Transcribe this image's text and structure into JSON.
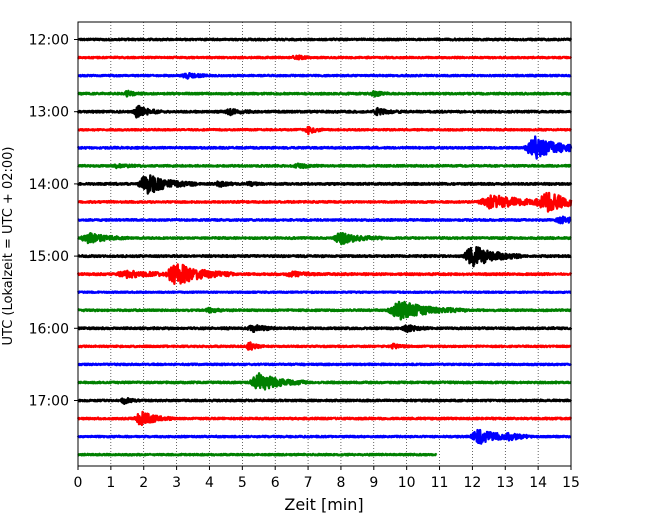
{
  "chart_data": {
    "type": "line",
    "title": "",
    "xlabel": "Zeit  [min]",
    "ylabel": "UTC (Lokalzeit = UTC + 02:00)",
    "xlim": [
      0,
      15
    ],
    "x_ticks": [
      0,
      1,
      2,
      3,
      4,
      5,
      6,
      7,
      8,
      9,
      10,
      11,
      12,
      13,
      14,
      15
    ],
    "y_tick_labels": [
      "12:00",
      "13:00",
      "14:00",
      "15:00",
      "16:00",
      "17:00"
    ],
    "y_tick_rows": [
      0,
      4,
      8,
      12,
      16,
      20
    ],
    "grid": "vertical dotted lines at each minute",
    "colors": [
      "#000000",
      "#ff0000",
      "#0000ff",
      "#008000"
    ],
    "traces": [
      {
        "start": "12:00",
        "end_min": 15,
        "noise": 0.9,
        "events": []
      },
      {
        "start": "12:15",
        "end_min": 15,
        "noise": 0.8,
        "events": [
          {
            "t": 6.6,
            "amp": 2.5,
            "dur": 0.2
          }
        ]
      },
      {
        "start": "12:30",
        "end_min": 15,
        "noise": 0.8,
        "events": [
          {
            "t": 3.3,
            "amp": 2.5,
            "dur": 0.3
          }
        ]
      },
      {
        "start": "12:45",
        "end_min": 15,
        "noise": 0.9,
        "events": [
          {
            "t": 1.5,
            "amp": 2.5,
            "dur": 0.2
          },
          {
            "t": 9.0,
            "amp": 2.5,
            "dur": 0.2
          }
        ]
      },
      {
        "start": "13:00",
        "end_min": 15,
        "noise": 1.0,
        "events": [
          {
            "t": 1.8,
            "amp": 6,
            "dur": 0.3
          },
          {
            "t": 4.6,
            "amp": 3,
            "dur": 0.3
          },
          {
            "t": 9.1,
            "amp": 3,
            "dur": 0.3
          }
        ]
      },
      {
        "start": "13:15",
        "end_min": 15,
        "noise": 0.8,
        "events": [
          {
            "t": 7.0,
            "amp": 4,
            "dur": 0.2
          }
        ]
      },
      {
        "start": "13:30",
        "end_min": 15,
        "noise": 0.9,
        "events": [
          {
            "t": 13.9,
            "amp": 11,
            "dur": 0.7
          }
        ]
      },
      {
        "start": "13:45",
        "end_min": 15,
        "noise": 0.9,
        "events": [
          {
            "t": 1.2,
            "amp": 2,
            "dur": 0.3
          },
          {
            "t": 6.7,
            "amp": 2,
            "dur": 0.3
          }
        ]
      },
      {
        "start": "14:00",
        "end_min": 15,
        "noise": 1.0,
        "events": [
          {
            "t": 2.1,
            "amp": 10,
            "dur": 0.6
          },
          {
            "t": 4.3,
            "amp": 3,
            "dur": 0.2
          },
          {
            "t": 5.2,
            "amp": 2,
            "dur": 0.2
          }
        ]
      },
      {
        "start": "14:15",
        "end_min": 15,
        "noise": 0.9,
        "events": [
          {
            "t": 12.6,
            "amp": 7,
            "dur": 0.9
          },
          {
            "t": 14.3,
            "amp": 8,
            "dur": 0.8
          }
        ]
      },
      {
        "start": "14:30",
        "end_min": 15,
        "noise": 0.9,
        "events": [
          {
            "t": 14.7,
            "amp": 3,
            "dur": 0.4
          }
        ]
      },
      {
        "start": "14:45",
        "end_min": 15,
        "noise": 0.9,
        "events": [
          {
            "t": 0.3,
            "amp": 5,
            "dur": 0.5
          },
          {
            "t": 8.0,
            "amp": 6,
            "dur": 0.5
          }
        ]
      },
      {
        "start": "15:00",
        "end_min": 15,
        "noise": 1.0,
        "events": [
          {
            "t": 12.0,
            "amp": 11,
            "dur": 0.6
          }
        ]
      },
      {
        "start": "15:15",
        "end_min": 15,
        "noise": 1.0,
        "events": [
          {
            "t": 1.5,
            "amp": 3,
            "dur": 0.8
          },
          {
            "t": 3.0,
            "amp": 11,
            "dur": 0.7
          },
          {
            "t": 6.5,
            "amp": 2,
            "dur": 0.5
          }
        ]
      },
      {
        "start": "15:30",
        "end_min": 15,
        "noise": 0.7,
        "events": []
      },
      {
        "start": "15:45",
        "end_min": 15,
        "noise": 0.9,
        "events": [
          {
            "t": 4.0,
            "amp": 2,
            "dur": 0.3
          },
          {
            "t": 9.8,
            "amp": 9,
            "dur": 0.8
          }
        ]
      },
      {
        "start": "16:00",
        "end_min": 15,
        "noise": 1.0,
        "events": [
          {
            "t": 5.3,
            "amp": 4,
            "dur": 0.3
          },
          {
            "t": 10.0,
            "amp": 3,
            "dur": 0.3
          }
        ]
      },
      {
        "start": "16:15",
        "end_min": 15,
        "noise": 0.8,
        "events": [
          {
            "t": 5.2,
            "amp": 4,
            "dur": 0.2
          },
          {
            "t": 9.6,
            "amp": 2,
            "dur": 0.2
          }
        ]
      },
      {
        "start": "16:30",
        "end_min": 15,
        "noise": 0.8,
        "events": []
      },
      {
        "start": "16:45",
        "end_min": 15,
        "noise": 0.9,
        "events": [
          {
            "t": 5.5,
            "amp": 9,
            "dur": 0.6
          }
        ]
      },
      {
        "start": "17:00",
        "end_min": 15,
        "noise": 0.9,
        "events": [
          {
            "t": 1.4,
            "amp": 3,
            "dur": 0.2
          }
        ]
      },
      {
        "start": "17:15",
        "end_min": 15,
        "noise": 0.9,
        "events": [
          {
            "t": 1.9,
            "amp": 7,
            "dur": 0.4
          }
        ]
      },
      {
        "start": "17:30",
        "end_min": 15,
        "noise": 0.8,
        "events": [
          {
            "t": 12.2,
            "amp": 7,
            "dur": 0.6
          },
          {
            "t": 13.1,
            "amp": 2,
            "dur": 0.3
          }
        ]
      },
      {
        "start": "17:45",
        "end_min": 10.9,
        "noise": 0.8,
        "events": []
      }
    ]
  }
}
